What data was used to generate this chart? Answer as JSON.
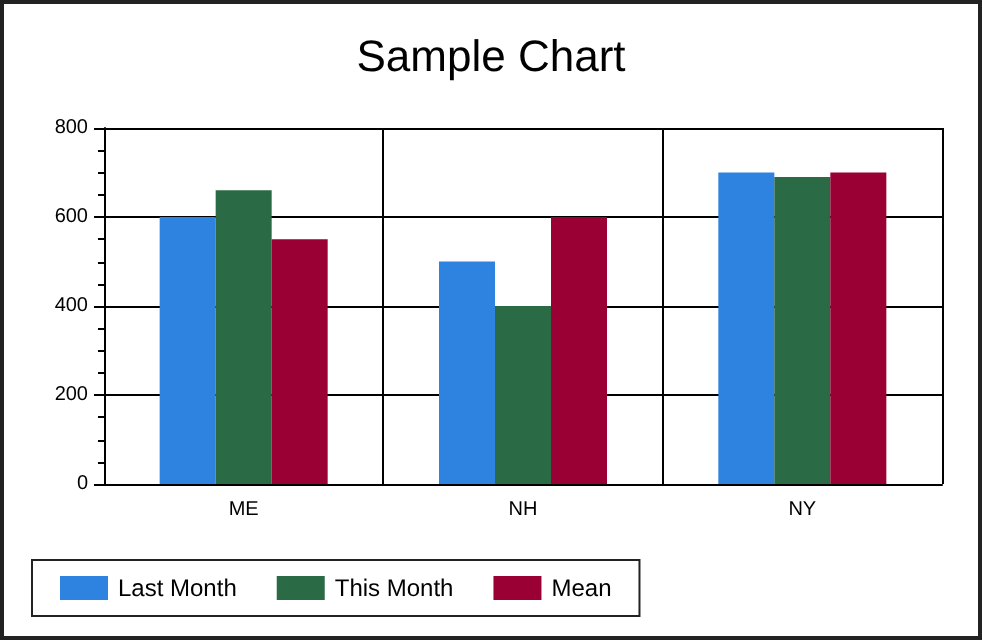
{
  "chart_data": {
    "type": "bar",
    "title": "Sample Chart",
    "categories": [
      "ME",
      "NH",
      "NY"
    ],
    "series": [
      {
        "name": "Last Month",
        "color": "#2e82e0",
        "values": [
          600,
          500,
          700
        ]
      },
      {
        "name": "This Month",
        "color": "#2a6a44",
        "values": [
          660,
          400,
          690
        ]
      },
      {
        "name": "Mean",
        "color": "#9b0035",
        "values": [
          550,
          600,
          700
        ]
      }
    ],
    "ylim": [
      0,
      800
    ],
    "yticks": [
      0,
      200,
      400,
      600,
      800
    ],
    "grid": true,
    "legend": "bottom left"
  }
}
